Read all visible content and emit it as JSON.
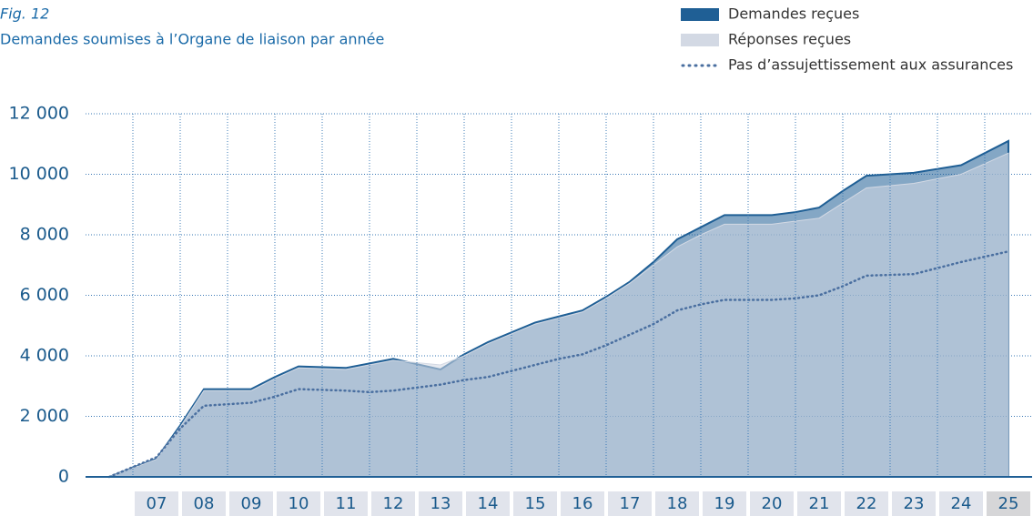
{
  "chart_data": {
    "type": "area",
    "title": "Fig. 12",
    "subtitle": "Demandes soumises à l’Organe de liaison par année",
    "x": [
      6,
      7,
      7.5,
      8,
      9,
      9.5,
      10,
      11,
      11.5,
      12,
      13,
      13.5,
      14,
      15,
      15.5,
      16,
      16.5,
      17,
      17.5,
      18,
      18.5,
      19,
      20,
      20.5,
      21,
      21.5,
      22,
      23,
      24,
      25
    ],
    "xlim": [
      5.5,
      25.5
    ],
    "xticks": [
      {
        "value": 7,
        "label": "07"
      },
      {
        "value": 8,
        "label": "08"
      },
      {
        "value": 9,
        "label": "09"
      },
      10,
      11,
      12,
      13,
      14,
      15,
      16,
      17,
      18,
      19,
      20,
      21,
      22,
      23,
      24,
      25
    ],
    "ylim": [
      0,
      12000
    ],
    "yticks": [
      0,
      {
        "value": 2000,
        "label": "2 000"
      },
      {
        "value": 4000,
        "label": "4 000"
      },
      {
        "value": 6000,
        "label": "6 000"
      },
      {
        "value": 8000,
        "label": "8 000"
      },
      {
        "value": 10000,
        "label": "10 000"
      },
      {
        "value": 12000,
        "label": "12 000"
      }
    ],
    "grid": true,
    "legend": "top-right",
    "series": [
      {
        "name": "Demandes reçues",
        "color": "#1f5f95",
        "kind": "area",
        "values": [
          0,
          600,
          1700,
          2900,
          2900,
          3300,
          3650,
          3600,
          3750,
          3900,
          3550,
          4050,
          4450,
          5100,
          5300,
          5500,
          5950,
          6450,
          7100,
          7850,
          8250,
          8650,
          8650,
          8750,
          8900,
          9450,
          9950,
          10050,
          10300,
          11100
        ]
      },
      {
        "name": "Réponses reçues",
        "color": "#d3d9e4",
        "kind": "area",
        "values": [
          0,
          580,
          1650,
          2850,
          2850,
          3250,
          3600,
          3550,
          3700,
          3850,
          3700,
          4000,
          4400,
          5050,
          5250,
          5450,
          5900,
          6400,
          7000,
          7600,
          8000,
          8350,
          8350,
          8450,
          8550,
          9050,
          9550,
          9700,
          10000,
          10700
        ]
      },
      {
        "name": "Pas d’assujettissement aux assurances",
        "color": "#4a6fa0",
        "kind": "dotted-line",
        "values": [
          0,
          650,
          1600,
          2350,
          2450,
          2650,
          2900,
          2850,
          2800,
          2850,
          3050,
          3200,
          3300,
          3700,
          3900,
          4050,
          4350,
          4700,
          5050,
          5500,
          5700,
          5850,
          5850,
          5900,
          6000,
          6300,
          6650,
          6700,
          7100,
          7450
        ]
      }
    ]
  }
}
